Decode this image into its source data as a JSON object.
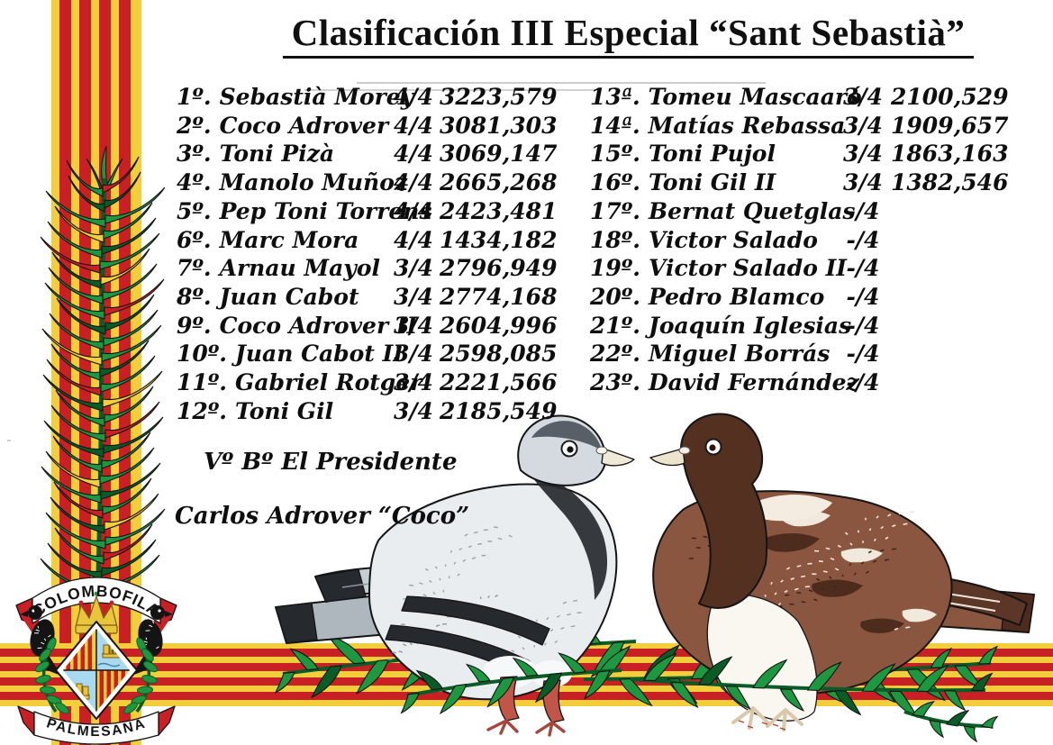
{
  "title": "Clasificación III Especial “Sant Sebastià”",
  "rankings_left": [
    {
      "rank": "1º.",
      "name": "Sebastià Morey",
      "flights": "4/4",
      "points": "3223,579"
    },
    {
      "rank": "2º.",
      "name": "Coco Adrover",
      "flights": "4/4",
      "points": "3081,303"
    },
    {
      "rank": "3º.",
      "name": "Toni Pizà",
      "flights": "4/4",
      "points": "3069,147"
    },
    {
      "rank": "4º.",
      "name": "Manolo Muñoz",
      "flights": "4/4",
      "points": "2665,268"
    },
    {
      "rank": "5º.",
      "name": "Pep Toni Torrens",
      "flights": "4/4",
      "points": "2423,481"
    },
    {
      "rank": "6º.",
      "name": "Marc Mora",
      "flights": "4/4",
      "points": "1434,182"
    },
    {
      "rank": "7º.",
      "name": "Arnau Mayol",
      "flights": "3/4",
      "points": "2796,949"
    },
    {
      "rank": "8º.",
      "name": "Juan Cabot",
      "flights": "3/4",
      "points": "2774,168"
    },
    {
      "rank": "9º.",
      "name": "Coco Adrover II",
      "flights": "3/4",
      "points": "2604,996"
    },
    {
      "rank": "10º.",
      "name": "Juan Cabot II",
      "flights": "3/4",
      "points": "2598,085"
    },
    {
      "rank": "11º.",
      "name": "Gabriel Rotger",
      "flights": "3/4",
      "points": "2221,566"
    },
    {
      "rank": "12º.",
      "name": "Toni Gil",
      "flights": "3/4",
      "points": "2185,549"
    }
  ],
  "rankings_right": [
    {
      "rank": "13ª.",
      "name": "Tomeu Mascaaró",
      "flights": "3/4",
      "points": "2100,529"
    },
    {
      "rank": "14ª.",
      "name": "Matías Rebassa",
      "flights": "3/4",
      "points": "1909,657"
    },
    {
      "rank": "15º.",
      "name": "Toni Pujol",
      "flights": "3/4",
      "points": "1863,163"
    },
    {
      "rank": "16º.",
      "name": "Toni Gil II",
      "flights": "3/4",
      "points": "1382,546"
    },
    {
      "rank": "17º.",
      "name": "Bernat Quetglas",
      "flights": "-/4",
      "points": ""
    },
    {
      "rank": "18º.",
      "name": "Victor Salado",
      "flights": "-/4",
      "points": ""
    },
    {
      "rank": "19º.",
      "name": "Victor Salado II",
      "flights": "-/4",
      "points": ""
    },
    {
      "rank": "20º.",
      "name": "Pedro Blamco",
      "flights": "-/4",
      "points": ""
    },
    {
      "rank": "21º.",
      "name": "Joaquín Iglesias",
      "flights": "-/4",
      "points": ""
    },
    {
      "rank": "22º.",
      "name": "Miguel Borrás",
      "flights": "-/4",
      "points": ""
    },
    {
      "rank": "23º.",
      "name": "David Fernández",
      "flights": "-/4",
      "points": ""
    }
  ],
  "signature": {
    "approval": "Vº Bº El Presidente",
    "president": "Carlos Adrover “Coco”"
  },
  "emblem": {
    "top_banner": "COLOMBOFILA",
    "bottom_banner": "PALMESANA"
  },
  "colors": {
    "senyera_yellow": "#F3CE3B",
    "senyera_red": "#C92026",
    "frond_green": "#1D9840",
    "frond_dark_green": "#0A5C26",
    "outline_ink": "#141414",
    "shield_blue": "#A9D9EE",
    "crown_gold": "#E9C53C",
    "pigeon_grey_light": "#E9EDF0",
    "pigeon_grey_mid": "#AEB6BE",
    "pigeon_grey_dark": "#26292E",
    "pigeon_brown": "#8A563F",
    "pigeon_brown_dark": "#4E2C1D",
    "leg_red": "#C05548",
    "scan_line": "#BDBDBD"
  }
}
